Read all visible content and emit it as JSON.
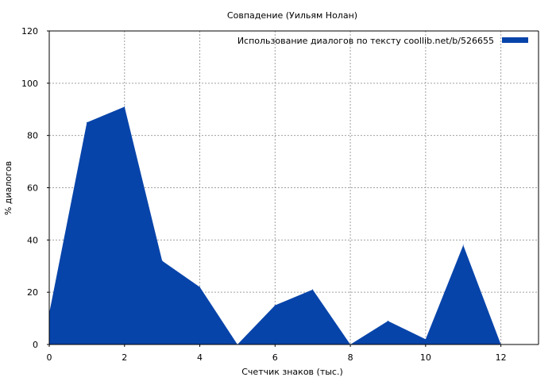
{
  "chart_data": {
    "type": "area",
    "title": "Совпадение (Уильям Нолан)",
    "xlabel": "Счетчик знаков (тыс.)",
    "ylabel": "% диалогов",
    "xlim": [
      0,
      13
    ],
    "ylim": [
      0,
      120
    ],
    "xticks": [
      0,
      2,
      4,
      6,
      8,
      10,
      12
    ],
    "yticks": [
      0,
      20,
      40,
      60,
      80,
      100,
      120
    ],
    "grid": true,
    "legend_position": "top-right",
    "series": [
      {
        "name": "Использование диалогов по тексту  coollib.net/b/526655",
        "color": "#0744aa",
        "x": [
          0,
          1,
          2,
          3,
          4,
          5,
          6,
          7,
          8,
          9,
          10,
          11,
          12
        ],
        "values": [
          12,
          85,
          91,
          32,
          22,
          0,
          15,
          21,
          0,
          9,
          2,
          38,
          0
        ]
      }
    ]
  }
}
